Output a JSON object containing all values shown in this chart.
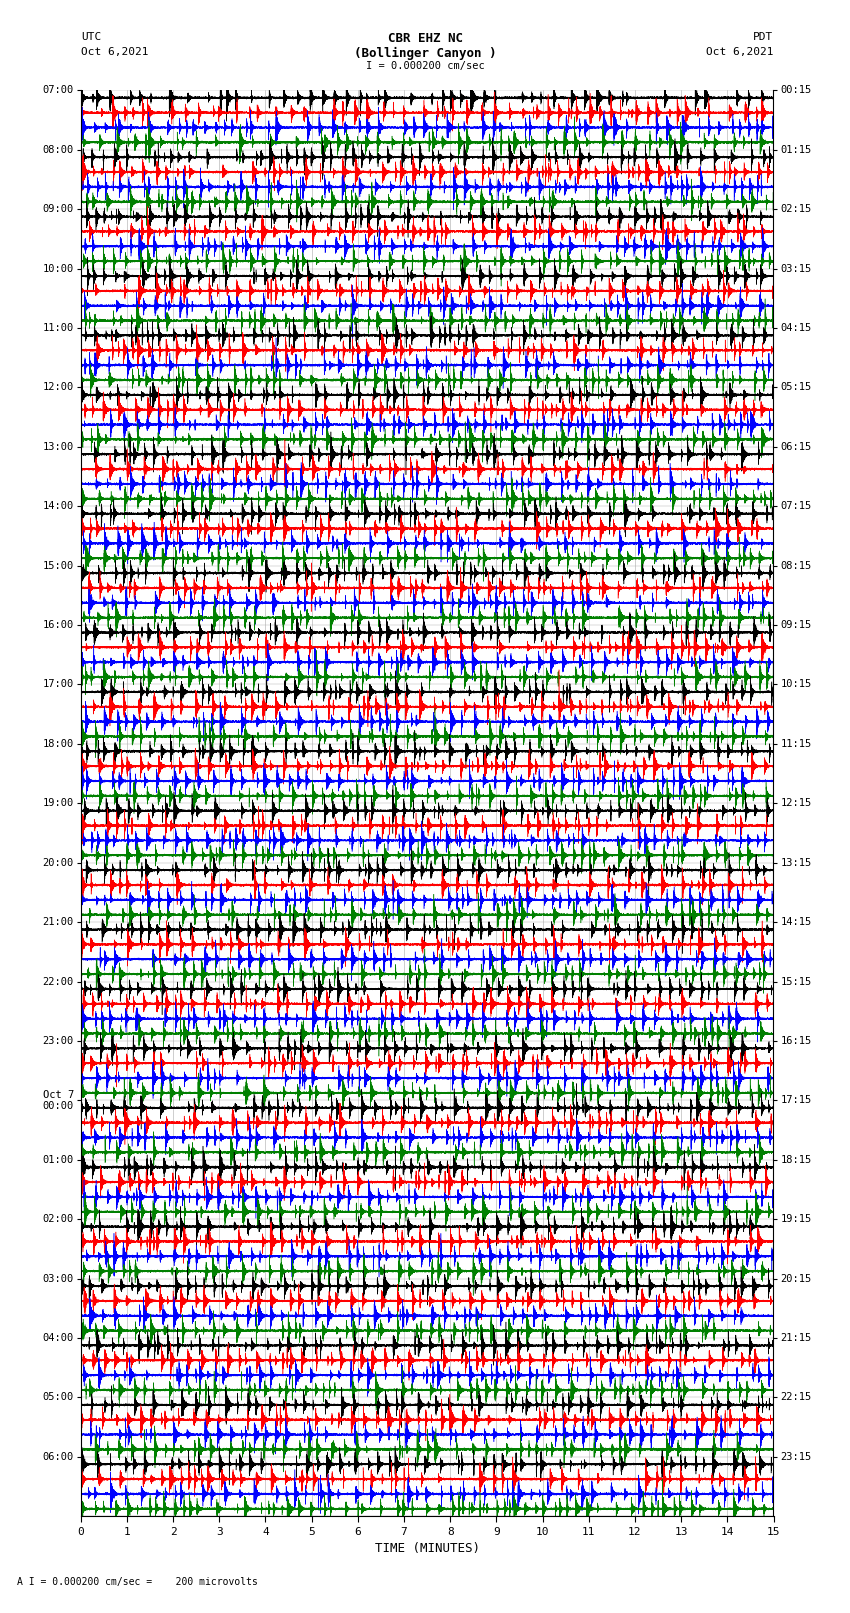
{
  "title_line1": "CBR EHZ NC",
  "title_line2": "(Bollinger Canyon )",
  "title_line3": "I = 0.000200 cm/sec",
  "label_utc": "UTC",
  "label_date_left": "Oct 6,2021",
  "label_pdt": "PDT",
  "label_date_right": "Oct 6,2021",
  "xlabel": "TIME (MINUTES)",
  "footer": "A I = 0.000200 cm/sec =    200 microvolts",
  "utc_labels": [
    "07:00",
    "08:00",
    "09:00",
    "10:00",
    "11:00",
    "12:00",
    "13:00",
    "14:00",
    "15:00",
    "16:00",
    "17:00",
    "18:00",
    "19:00",
    "20:00",
    "21:00",
    "22:00",
    "23:00",
    "Oct 7\n00:00",
    "01:00",
    "02:00",
    "03:00",
    "04:00",
    "05:00",
    "06:00"
  ],
  "pdt_labels": [
    "00:15",
    "01:15",
    "02:15",
    "03:15",
    "04:15",
    "05:15",
    "06:15",
    "07:15",
    "08:15",
    "09:15",
    "10:15",
    "11:15",
    "12:15",
    "13:15",
    "14:15",
    "15:15",
    "16:15",
    "17:15",
    "18:15",
    "19:15",
    "20:15",
    "21:15",
    "22:15",
    "23:15"
  ],
  "colors": [
    "black",
    "red",
    "blue",
    "green"
  ],
  "bg_color": "#ffffff",
  "grid_color": "#aaaaaa",
  "num_rows": 24,
  "traces_per_row": 4,
  "minutes": 15,
  "sample_rate": 100,
  "fig_width": 8.5,
  "fig_height": 16.13,
  "dpi": 100,
  "seed": 42
}
